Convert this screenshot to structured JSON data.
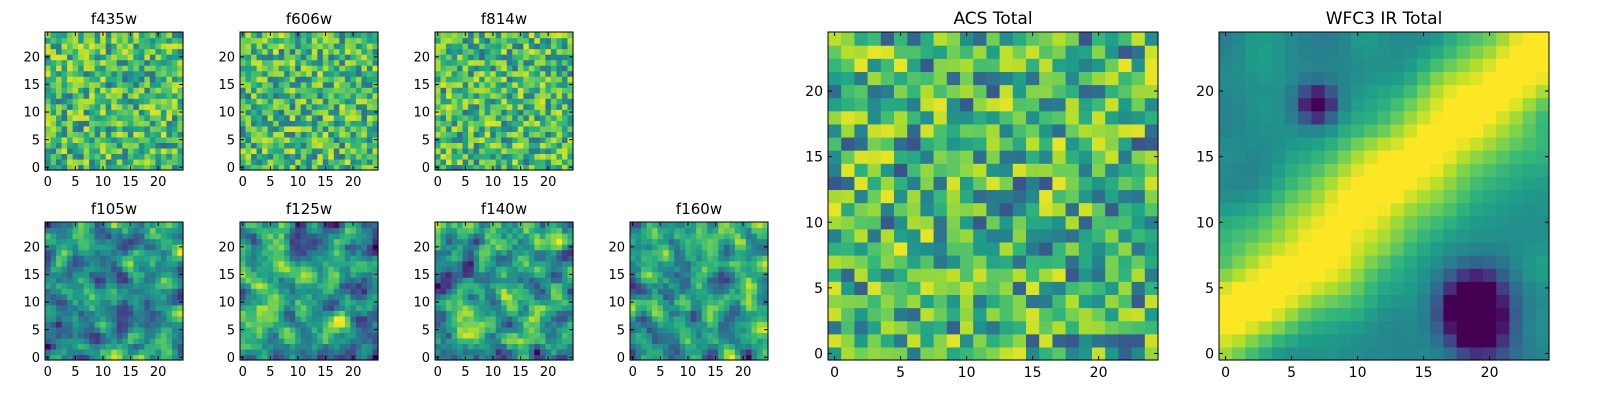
{
  "chart_data": {
    "type": "heatmap",
    "colormap": "viridis",
    "grid_size": 25,
    "panels": [
      {
        "name": "f435w",
        "title": "f435w",
        "xticks": [
          "0",
          "5",
          "10",
          "15",
          "20"
        ],
        "yticks": [
          "0",
          "5",
          "10",
          "15",
          "20"
        ]
      },
      {
        "name": "f606w",
        "title": "f606w",
        "xticks": [
          "0",
          "5",
          "10",
          "15",
          "20"
        ],
        "yticks": [
          "0",
          "5",
          "10",
          "15",
          "20"
        ]
      },
      {
        "name": "f814w",
        "title": "f814w",
        "xticks": [
          "0",
          "5",
          "10",
          "15",
          "20"
        ],
        "yticks": [
          "0",
          "5",
          "10",
          "15",
          "20"
        ]
      },
      {
        "name": "f105w",
        "title": "f105w",
        "xticks": [
          "0",
          "5",
          "10",
          "15",
          "20"
        ],
        "yticks": [
          "0",
          "5",
          "10",
          "15",
          "20"
        ]
      },
      {
        "name": "f125w",
        "title": "f125w",
        "xticks": [
          "0",
          "5",
          "10",
          "15",
          "20"
        ],
        "yticks": [
          "0",
          "5",
          "10",
          "15",
          "20"
        ]
      },
      {
        "name": "f140w",
        "title": "f140w",
        "xticks": [
          "0",
          "5",
          "10",
          "15",
          "20"
        ],
        "yticks": [
          "0",
          "5",
          "10",
          "15",
          "20"
        ]
      },
      {
        "name": "f160w",
        "title": "f160w",
        "xticks": [
          "0",
          "5",
          "10",
          "15",
          "20"
        ],
        "yticks": [
          "0",
          "5",
          "10",
          "15",
          "20"
        ]
      },
      {
        "name": "acs-total",
        "title": "ACS Total",
        "xticks": [
          "0",
          "5",
          "10",
          "15",
          "20"
        ],
        "yticks": [
          "0",
          "5",
          "10",
          "15",
          "20"
        ]
      },
      {
        "name": "wfc3-ir-total",
        "title": "WFC3 IR Total",
        "xticks": [
          "0",
          "5",
          "10",
          "15",
          "20"
        ],
        "yticks": [
          "0",
          "5",
          "10",
          "15",
          "20"
        ]
      }
    ]
  }
}
